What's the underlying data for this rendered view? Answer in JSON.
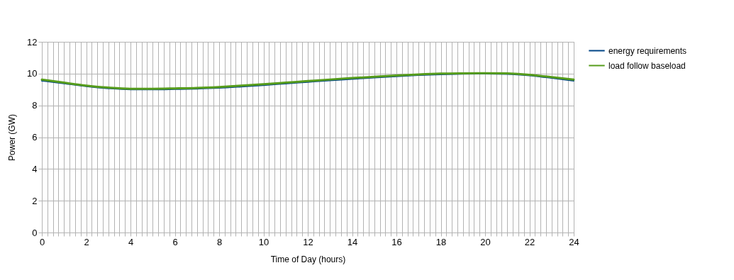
{
  "chart_data": {
    "type": "line",
    "xlabel": "Time of Day (hours)",
    "ylabel": "Power (GW)",
    "x": [
      0,
      1,
      2,
      3,
      4,
      5,
      6,
      7,
      8,
      9,
      10,
      11,
      12,
      13,
      14,
      15,
      16,
      17,
      18,
      19,
      20,
      21,
      22,
      23,
      24
    ],
    "series": [
      {
        "name": "energy requirements",
        "color": "#004586",
        "values": [
          9.55,
          9.38,
          9.2,
          9.07,
          9.0,
          9.0,
          9.02,
          9.05,
          9.1,
          9.18,
          9.27,
          9.37,
          9.47,
          9.57,
          9.66,
          9.75,
          9.83,
          9.9,
          9.95,
          9.98,
          9.99,
          9.97,
          9.88,
          9.72,
          9.55
        ]
      },
      {
        "name": "load follow baseload",
        "color": "#579d1c",
        "values": [
          9.62,
          9.43,
          9.25,
          9.12,
          9.05,
          9.05,
          9.07,
          9.1,
          9.16,
          9.24,
          9.33,
          9.43,
          9.53,
          9.63,
          9.72,
          9.8,
          9.88,
          9.95,
          10.0,
          10.02,
          10.03,
          10.01,
          9.93,
          9.78,
          9.62
        ]
      }
    ],
    "xlim": [
      0,
      24
    ],
    "ylim": [
      0,
      12
    ],
    "yticks": [
      0,
      2,
      4,
      6,
      8,
      10,
      12
    ],
    "xticks": [
      0,
      {
        "value": 0.25,
        "label": null
      },
      {
        "value": 0.5,
        "label": null
      },
      {
        "value": 0.75,
        "label": null
      },
      {
        "value": 1,
        "label": null
      },
      {
        "value": 1.25,
        "label": null
      },
      {
        "value": 1.5,
        "label": null
      },
      {
        "value": 1.75,
        "label": null
      },
      2,
      {
        "value": 2.25,
        "label": null
      },
      {
        "value": 2.5,
        "label": null
      },
      {
        "value": 2.75,
        "label": null
      },
      {
        "value": 3,
        "label": null
      },
      {
        "value": 3.25,
        "label": null
      },
      {
        "value": 3.5,
        "label": null
      },
      {
        "value": 3.75,
        "label": null
      },
      4,
      {
        "value": 4.25,
        "label": null
      },
      {
        "value": 4.5,
        "label": null
      },
      {
        "value": 4.75,
        "label": null
      },
      {
        "value": 5,
        "label": null
      },
      {
        "value": 5.25,
        "label": null
      },
      {
        "value": 5.5,
        "label": null
      },
      {
        "value": 5.75,
        "label": null
      },
      6,
      {
        "value": 6.25,
        "label": null
      },
      {
        "value": 6.5,
        "label": null
      },
      {
        "value": 6.75,
        "label": null
      },
      {
        "value": 7,
        "label": null
      },
      {
        "value": 7.25,
        "label": null
      },
      {
        "value": 7.5,
        "label": null
      },
      {
        "value": 7.75,
        "label": null
      },
      8,
      {
        "value": 8.25,
        "label": null
      },
      {
        "value": 8.5,
        "label": null
      },
      {
        "value": 8.75,
        "label": null
      },
      {
        "value": 9,
        "label": null
      },
      {
        "value": 9.25,
        "label": null
      },
      {
        "value": 9.5,
        "label": null
      },
      {
        "value": 9.75,
        "label": null
      },
      10,
      {
        "value": 10.25,
        "label": null
      },
      {
        "value": 10.5,
        "label": null
      },
      {
        "value": 10.75,
        "label": null
      },
      {
        "value": 11,
        "label": null
      },
      {
        "value": 11.25,
        "label": null
      },
      {
        "value": 11.5,
        "label": null
      },
      {
        "value": 11.75,
        "label": null
      },
      12,
      {
        "value": 12.25,
        "label": null
      },
      {
        "value": 12.5,
        "label": null
      },
      {
        "value": 12.75,
        "label": null
      },
      {
        "value": 13,
        "label": null
      },
      {
        "value": 13.25,
        "label": null
      },
      {
        "value": 13.5,
        "label": null
      },
      {
        "value": 13.75,
        "label": null
      },
      14,
      {
        "value": 14.25,
        "label": null
      },
      {
        "value": 14.5,
        "label": null
      },
      {
        "value": 14.75,
        "label": null
      },
      {
        "value": 15,
        "label": null
      },
      {
        "value": 15.25,
        "label": null
      },
      {
        "value": 15.5,
        "label": null
      },
      {
        "value": 15.75,
        "label": null
      },
      16,
      {
        "value": 16.25,
        "label": null
      },
      {
        "value": 16.5,
        "label": null
      },
      {
        "value": 16.75,
        "label": null
      },
      {
        "value": 17,
        "label": null
      },
      {
        "value": 17.25,
        "label": null
      },
      {
        "value": 17.5,
        "label": null
      },
      {
        "value": 17.75,
        "label": null
      },
      18,
      {
        "value": 18.25,
        "label": null
      },
      {
        "value": 18.5,
        "label": null
      },
      {
        "value": 18.75,
        "label": null
      },
      {
        "value": 19,
        "label": null
      },
      {
        "value": 19.25,
        "label": null
      },
      {
        "value": 19.5,
        "label": null
      },
      {
        "value": 19.75,
        "label": null
      },
      20,
      {
        "value": 20.25,
        "label": null
      },
      {
        "value": 20.5,
        "label": null
      },
      {
        "value": 20.75,
        "label": null
      },
      {
        "value": 21,
        "label": null
      },
      {
        "value": 21.25,
        "label": null
      },
      {
        "value": 21.5,
        "label": null
      },
      {
        "value": 21.75,
        "label": null
      },
      22,
      {
        "value": 22.25,
        "label": null
      },
      {
        "value": 22.5,
        "label": null
      },
      {
        "value": 22.75,
        "label": null
      },
      {
        "value": 23,
        "label": null
      },
      {
        "value": 23.25,
        "label": null
      },
      {
        "value": 23.5,
        "label": null
      },
      {
        "value": 23.75,
        "label": null
      },
      24
    ],
    "grid": true,
    "legend": "right",
    "marker": "none",
    "line_style": "solid"
  }
}
